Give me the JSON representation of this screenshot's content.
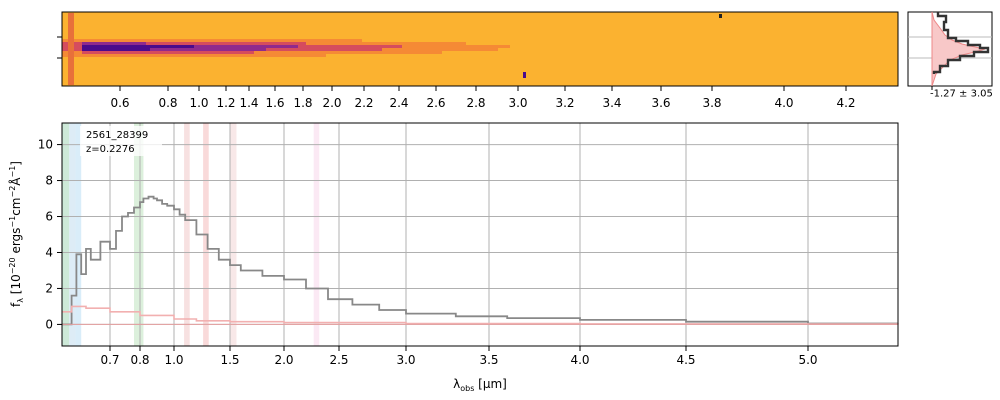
{
  "chart_data": [
    {
      "type": "heatmap",
      "description_source": "2D spectrum panel",
      "x_ticks": [
        "0.6",
        "0.8",
        "1.0",
        "1.2",
        "1.4",
        "1.6",
        "1.8",
        "2.0",
        "2.2",
        "2.4",
        "2.6",
        "2.8",
        "3.0",
        "3.2",
        "3.4",
        "3.6",
        "3.8",
        "4.0",
        "4.2"
      ],
      "colormap": [
        "#fbb230",
        "#f58a35",
        "#d54c5e",
        "#8f2a8d",
        "#4a0b8c"
      ],
      "background_color": "#fbb230"
    },
    {
      "type": "line",
      "panel": "profile",
      "annotation": "-1.27 ± 3.05",
      "fill_color": "#f4a3a3",
      "line_color": "#333333"
    },
    {
      "type": "line",
      "panel": "1D spectrum",
      "legend": [
        "2561_28399",
        "z=0.2276"
      ],
      "xlabel": "λobs [μm]",
      "ylabel": "fλ [10^-20 ergs^-1 cm^-2 Å^-1]",
      "x_ticks": [
        "0.7",
        "0.8",
        "1.0",
        "1.5",
        "2.0",
        "2.5",
        "3.0",
        "3.5",
        "4.0",
        "4.5",
        "5.0"
      ],
      "y_ticks": [
        "0",
        "2",
        "4",
        "6",
        "8",
        "10"
      ],
      "ylim": [
        -1.2,
        11.2
      ],
      "xlim": [
        0.6,
        5.4
      ],
      "grid": true,
      "series": [
        {
          "color": "#888888",
          "x": [
            0.6,
            0.62,
            0.63,
            0.64,
            0.65,
            0.66,
            0.68,
            0.7,
            0.72,
            0.74,
            0.76,
            0.78,
            0.8,
            0.82,
            0.85,
            0.88,
            0.9,
            0.93,
            0.96,
            1.0,
            1.05,
            1.1,
            1.2,
            1.3,
            1.4,
            1.5,
            1.6,
            1.8,
            2.0,
            2.2,
            2.4,
            2.6,
            2.8,
            3.0,
            3.3,
            3.6,
            4.0,
            4.5,
            5.0,
            5.4
          ],
          "y": [
            0.0,
            1.6,
            3.9,
            2.8,
            4.2,
            3.6,
            4.6,
            4.2,
            5.2,
            6.0,
            6.2,
            6.5,
            6.8,
            7.0,
            7.1,
            7.0,
            6.9,
            6.7,
            6.6,
            6.4,
            6.1,
            5.8,
            5.0,
            4.2,
            3.6,
            3.3,
            3.0,
            2.7,
            2.5,
            2.0,
            1.4,
            1.1,
            0.8,
            0.6,
            0.45,
            0.35,
            0.25,
            0.15,
            0.05,
            0.05
          ]
        },
        {
          "color": "#f2b0b0",
          "x": [
            0.6,
            0.62,
            0.65,
            0.7,
            0.8,
            1.0,
            1.2,
            1.5,
            2.0,
            3.0,
            4.0,
            5.0,
            5.4
          ],
          "y": [
            0.7,
            1.0,
            0.9,
            0.7,
            0.5,
            0.3,
            0.2,
            0.15,
            0.1,
            0.05,
            0.03,
            0.02,
            0.0
          ]
        }
      ],
      "shaded_bands": [
        {
          "x0": 0.6,
          "x1": 0.615,
          "color": "#b8dfc7"
        },
        {
          "x0": 0.615,
          "x1": 0.628,
          "color": "#cfe4f2"
        },
        {
          "x0": 0.628,
          "x1": 0.64,
          "color": "#c9e6f6"
        },
        {
          "x0": 0.78,
          "x1": 0.82,
          "color": "#cdeacd"
        },
        {
          "x0": 1.09,
          "x1": 1.14,
          "color": "#f4d4d4"
        },
        {
          "x0": 1.26,
          "x1": 1.31,
          "color": "#f7caca"
        },
        {
          "x0": 1.5,
          "x1": 1.56,
          "color": "#f5dede"
        },
        {
          "x0": 2.27,
          "x1": 2.32,
          "color": "#f9dff0"
        }
      ]
    }
  ]
}
